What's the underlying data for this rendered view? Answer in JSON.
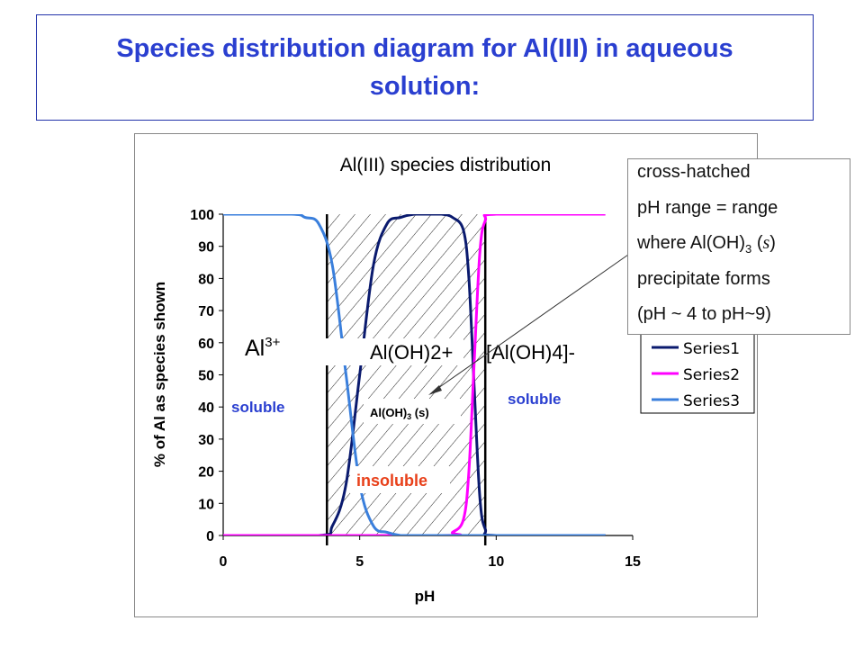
{
  "slide": {
    "title": "Species distribution diagram for Al(III) in aqueous solution:"
  },
  "note": {
    "line1": "cross-hatched",
    "line2": "pH range = range",
    "line3_prefix": "where Al(OH)",
    "line3_sub": "3",
    "line3_state_open": " (",
    "line3_state": "s",
    "line3_state_close": ")",
    "line4": "precipitate forms",
    "line5": "(pH ~ 4 to pH~9)"
  },
  "annotations": {
    "al3_base": "Al",
    "al3_sup": "3+",
    "aloh2": "Al(OH)2+",
    "aloh4": "[Al(OH)4]-",
    "soluble_left": "soluble",
    "soluble_right": "soluble",
    "insoluble": "insoluble",
    "precip_base": "Al(OH)",
    "precip_sub": "3",
    "precip_state": " (s)"
  },
  "colors": {
    "series1": "#0a1a6e",
    "series2": "#ff00ff",
    "series3": "#3a7fdc",
    "title": "#2a3fd0",
    "soluble": "#2a3fd0",
    "insoluble": "#e8401a"
  },
  "chart_data": {
    "type": "line",
    "title": "Al(III) species distribution",
    "xlabel": "pH",
    "ylabel": "% of Al as species shown",
    "xlim": [
      0,
      15
    ],
    "ylim": [
      0,
      100
    ],
    "xticks": [
      "0",
      "5",
      "10",
      "15"
    ],
    "yticks": [
      "0",
      "10",
      "20",
      "30",
      "40",
      "50",
      "60",
      "70",
      "80",
      "90",
      "100"
    ],
    "legend_position": "right",
    "series": [
      {
        "name": "Series1",
        "x": [
          0,
          3.5,
          4.0,
          4.5,
          5.0,
          5.5,
          6.0,
          6.5,
          7.0,
          7.5,
          8.0,
          8.4,
          8.8,
          9.0,
          9.2,
          9.4,
          9.6,
          10,
          14
        ],
        "y": [
          0,
          0,
          3,
          16,
          50,
          84,
          97,
          99,
          100,
          100,
          100,
          99,
          95,
          80,
          45,
          12,
          2,
          0,
          0
        ]
      },
      {
        "name": "Series2",
        "x": [
          0,
          8.0,
          8.4,
          8.8,
          9.0,
          9.2,
          9.4,
          9.6,
          10,
          14
        ],
        "y": [
          0,
          0,
          1,
          5,
          20,
          55,
          88,
          98,
          100,
          100
        ]
      },
      {
        "name": "Series3",
        "x": [
          0,
          2.5,
          3.0,
          3.5,
          4.0,
          4.5,
          5.0,
          5.5,
          6.0,
          6.5,
          7.0,
          8.0,
          14
        ],
        "y": [
          100,
          100,
          99,
          97,
          84,
          50,
          16,
          3,
          1,
          0,
          0,
          0,
          0
        ]
      }
    ],
    "vertical_lines_x": [
      3.8,
      9.6
    ],
    "hatched_range": [
      3.8,
      9.6
    ]
  }
}
